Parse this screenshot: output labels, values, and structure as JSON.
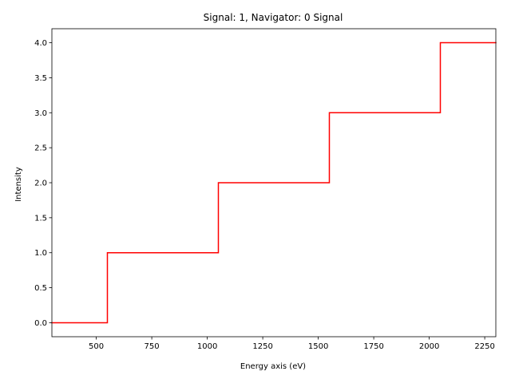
{
  "chart_data": {
    "type": "line",
    "style": "step",
    "title": "Signal: 1, Navigator: 0 Signal",
    "xlabel": "Energy axis (eV)",
    "ylabel": "Intensity",
    "xlim": [
      300,
      2300
    ],
    "ylim": [
      -0.2,
      4.2
    ],
    "xticks": [
      500,
      750,
      1000,
      1250,
      1500,
      1750,
      2000,
      2250
    ],
    "yticks": [
      0.0,
      0.5,
      1.0,
      1.5,
      2.0,
      2.5,
      3.0,
      3.5,
      4.0
    ],
    "xtick_labels": [
      "500",
      "750",
      "1000",
      "1250",
      "1500",
      "1750",
      "2000",
      "2250"
    ],
    "ytick_labels": [
      "0.0",
      "0.5",
      "1.0",
      "1.5",
      "2.0",
      "2.5",
      "3.0",
      "3.5",
      "4.0"
    ],
    "grid": false,
    "series": [
      {
        "color": "#ff0000",
        "x": [
          300,
          550,
          550,
          1050,
          1050,
          1550,
          1550,
          2050,
          2050,
          2300
        ],
        "y": [
          0,
          0,
          1,
          1,
          2,
          2,
          3,
          3,
          4,
          4
        ]
      }
    ]
  }
}
